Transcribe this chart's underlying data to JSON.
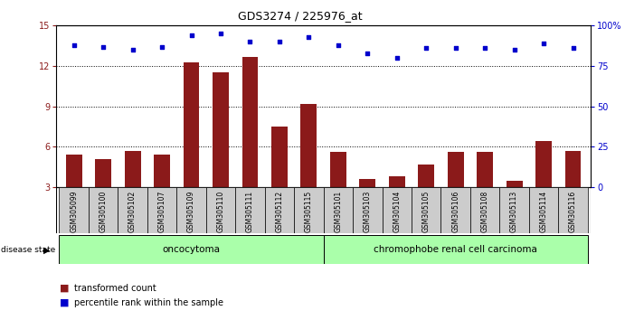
{
  "title": "GDS3274 / 225976_at",
  "samples": [
    "GSM305099",
    "GSM305100",
    "GSM305102",
    "GSM305107",
    "GSM305109",
    "GSM305110",
    "GSM305111",
    "GSM305112",
    "GSM305115",
    "GSM305101",
    "GSM305103",
    "GSM305104",
    "GSM305105",
    "GSM305106",
    "GSM305108",
    "GSM305113",
    "GSM305114",
    "GSM305116"
  ],
  "bar_values": [
    5.4,
    5.1,
    5.7,
    5.4,
    12.3,
    11.5,
    12.7,
    7.5,
    9.2,
    5.6,
    3.6,
    3.8,
    4.7,
    5.6,
    5.6,
    3.5,
    6.4,
    5.7
  ],
  "dot_values": [
    88,
    87,
    85,
    87,
    94,
    95,
    90,
    90,
    93,
    88,
    83,
    80,
    86,
    86,
    86,
    85,
    89,
    86
  ],
  "ylim_left": [
    3,
    15
  ],
  "ylim_right": [
    0,
    100
  ],
  "yticks_left": [
    3,
    6,
    9,
    12,
    15
  ],
  "yticks_right": [
    0,
    25,
    50,
    75,
    100
  ],
  "yticklabels_right": [
    "0",
    "25",
    "50",
    "75",
    "100%"
  ],
  "bar_color": "#8B1A1A",
  "dot_color": "#0000CC",
  "oncocytoma_label": "oncocytoma",
  "carcinoma_label": "chromophobe renal cell carcinoma",
  "disease_state_label": "disease state",
  "legend_bar": "transformed count",
  "legend_dot": "percentile rank within the sample",
  "bg_color": "#FFFFFF",
  "onco_fill": "#AAFFAA",
  "carcinoma_fill": "#AAFFAA",
  "ticker_bg": "#CCCCCC"
}
